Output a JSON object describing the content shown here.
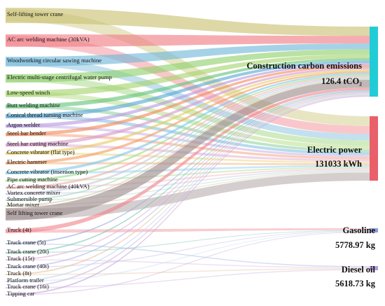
{
  "chart_data": {
    "type": "sankey",
    "sources": [
      {
        "name": "Self-lifting tower crane",
        "color": "#c8c070"
      },
      {
        "name": "AC arc welding machine (30kVA)",
        "color": "#f07a82"
      },
      {
        "name": "Woodworking circular sawing machine",
        "color": "#6fb6d8"
      },
      {
        "name": "Electric multi-stage centrifugal water pump",
        "color": "#8ed06a"
      },
      {
        "name": "Low-speed winch",
        "color": "#a4d46c"
      },
      {
        "name": "Butt welding machine",
        "color": "#64c47a"
      },
      {
        "name": "Conical thread turning machine",
        "color": "#58a8d4"
      },
      {
        "name": "Argon welder",
        "color": "#b89ae0"
      },
      {
        "name": "Steel bar bender",
        "color": "#f28a5a"
      },
      {
        "name": "Steel bar cutting machine",
        "color": "#d89acc"
      },
      {
        "name": "Concrete vibrator (flat type)",
        "color": "#e6cc60"
      },
      {
        "name": "Electric hammer",
        "color": "#f0a064"
      },
      {
        "name": "Concrete vibrator (insertion type)",
        "color": "#80c8e8"
      },
      {
        "name": "Pipe cutting machine",
        "color": "#a0d890"
      },
      {
        "name": "AC arc welding machine (40kVA)",
        "color": "#f0b0b0"
      },
      {
        "name": "Vortex concrete mixer",
        "color": "#c8c8e0"
      },
      {
        "name": "Submersible pump",
        "color": "#a8d8c8"
      },
      {
        "name": "Mortar mixer",
        "color": "#d8c8a8"
      },
      {
        "name": "Self lifting tower crane",
        "color": "#9c8a8a"
      },
      {
        "name": "Truck (4t)",
        "color": "#f0848c"
      },
      {
        "name": "Truck crane (5t)",
        "color": "#9ab0e0"
      },
      {
        "name": "Truck crane (20t)",
        "color": "#7cc8b4"
      },
      {
        "name": "Truck (15t)",
        "color": "#e0b4d8"
      },
      {
        "name": "Truck crane (40t)",
        "color": "#b8b8e8"
      },
      {
        "name": "Truck (8t)",
        "color": "#e8c4a0"
      },
      {
        "name": "Platform trailer",
        "color": "#c0d8f0"
      },
      {
        "name": "Truck crane (16t)",
        "color": "#d0b8e0"
      },
      {
        "name": "Tipping car",
        "color": "#c8a8d8"
      }
    ],
    "targets": [
      {
        "name": "Construction carbon emissions",
        "value": "126.4 tCO₂",
        "color": "#22ccd6"
      },
      {
        "name": "Electric power",
        "value": "131033 kWh",
        "color": "#e9606a"
      },
      {
        "name": "Gasoline",
        "value": "5778.97 kg",
        "color": "#8a9ad8"
      },
      {
        "name": "Diesel oil",
        "value": "5618.73 kg",
        "color": "#b49ae0"
      }
    ]
  }
}
